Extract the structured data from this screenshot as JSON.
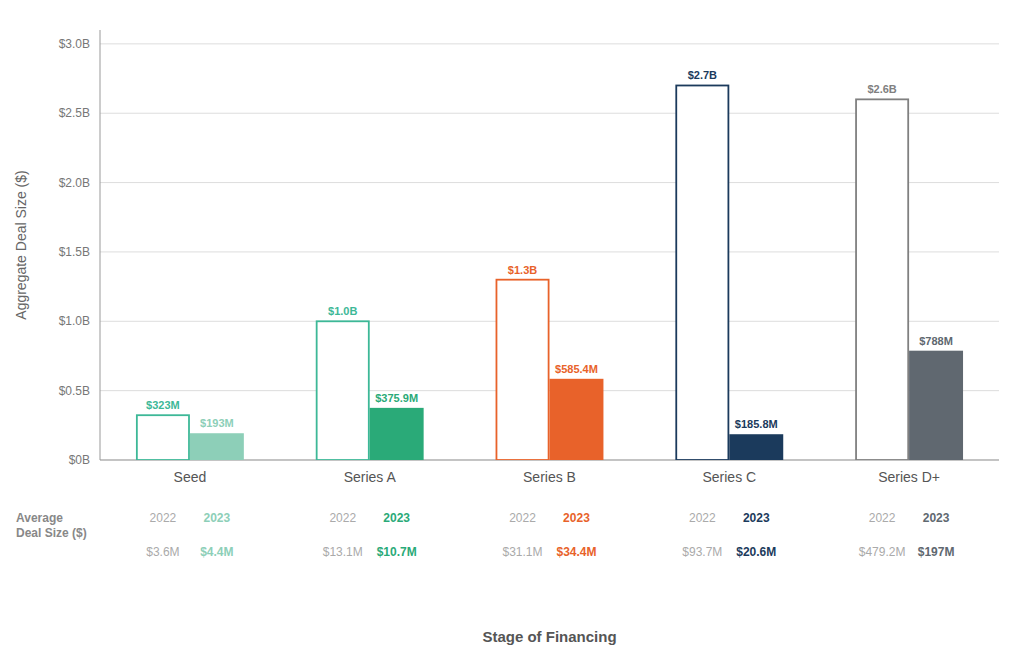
{
  "chart_data": {
    "type": "bar",
    "categories": [
      "Seed",
      "Series A",
      "Series B",
      "Series C",
      "Series D+"
    ],
    "series": [
      {
        "name": "2022",
        "values": [
          0.323,
          1.0,
          1.3,
          2.7,
          2.6
        ],
        "value_labels": [
          "$323M",
          "$1.0B",
          "$1.3B",
          "$2.7B",
          "$2.6B"
        ],
        "colors": [
          "#3db897",
          "#3db897",
          "#e8622a",
          "#1b3a5c",
          "#808080"
        ],
        "averages": [
          "$3.6M",
          "$13.1M",
          "$31.1M",
          "$93.7M",
          "$479.2M"
        ]
      },
      {
        "name": "2023",
        "values": [
          0.193,
          0.3759,
          0.5854,
          0.1858,
          0.788
        ],
        "value_labels": [
          "$193M",
          "$375.9M",
          "$585.4M",
          "$185.8M",
          "$788M"
        ],
        "colors": [
          "#8dcfb8",
          "#2aaa78",
          "#e8622a",
          "#1b3a5c",
          "#606870"
        ],
        "averages": [
          "$4.4M",
          "$10.7M",
          "$34.4M",
          "$20.6M",
          "$197M"
        ]
      }
    ],
    "annotation": "Average\nDeal Size ($)",
    "x_label": "Stage of Financing",
    "y_label": "Aggregate Deal Size ($)",
    "ylim": [
      0,
      3.1
    ],
    "yticks": [
      {
        "value": 0.0,
        "label": "$0B"
      },
      {
        "value": 0.5,
        "label": "$0.5B"
      },
      {
        "value": 1.0,
        "label": "$1.0B"
      },
      {
        "value": 1.5,
        "label": "$1.5B"
      },
      {
        "value": 2.0,
        "label": "$2.0B"
      },
      {
        "value": 2.5,
        "label": "$2.5B"
      },
      {
        "value": 3.0,
        "label": "$3.0B"
      }
    ],
    "grid": true,
    "data_labels": true
  }
}
